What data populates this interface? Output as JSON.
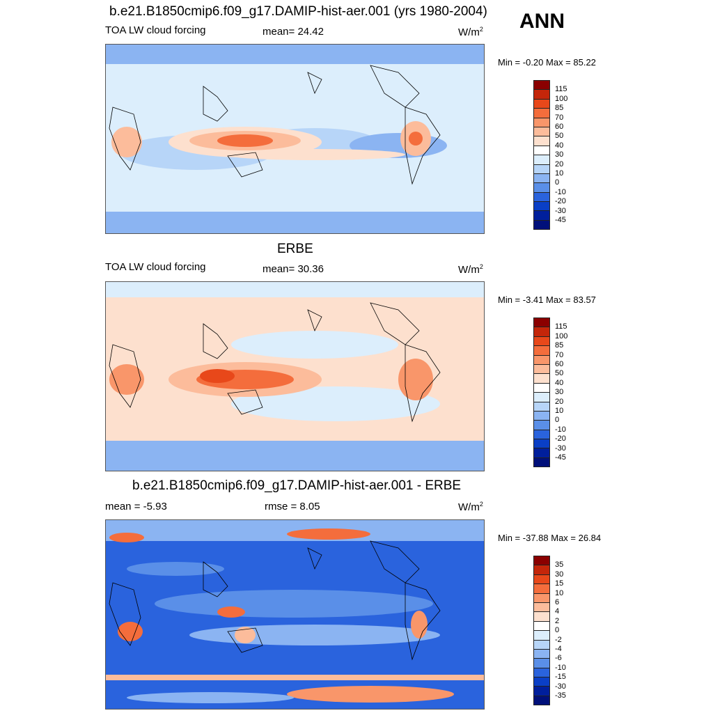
{
  "season": "ANN",
  "panels": [
    {
      "title": "b.e21.B1850cmip6.f09_g17.DAMIP-hist-aer.001 (yrs 1980-2004)",
      "left_label": "TOA LW cloud forcing",
      "center_label": "mean=  24.42",
      "units": "W/m",
      "units_sup": "2",
      "minmax": "Min =  -0.20 Max =  85.22",
      "colorbar_labels": [
        "115",
        "100",
        "85",
        "70",
        "60",
        "50",
        "40",
        "30",
        "20",
        "10",
        "0",
        "-10",
        "-20",
        "-30",
        "-45"
      ],
      "colorbar_colors": [
        "#8b0000",
        "#c4260a",
        "#e8481a",
        "#f46d3c",
        "#f9966a",
        "#fcbc9b",
        "#fde0ce",
        "#ffffff",
        "#dceefc",
        "#b7d5f8",
        "#8bb4f2",
        "#5a8fe8",
        "#2a63dd",
        "#0a3fc6",
        "#001f9c",
        "#00107a"
      ]
    },
    {
      "title": "ERBE",
      "left_label": "TOA LW cloud forcing",
      "center_label": "mean=  30.36",
      "units": "W/m",
      "units_sup": "2",
      "minmax": "Min =  -3.41 Max =  83.57",
      "colorbar_labels": [
        "115",
        "100",
        "85",
        "70",
        "60",
        "50",
        "40",
        "30",
        "20",
        "10",
        "0",
        "-10",
        "-20",
        "-30",
        "-45"
      ],
      "colorbar_colors": [
        "#8b0000",
        "#c4260a",
        "#e8481a",
        "#f46d3c",
        "#f9966a",
        "#fcbc9b",
        "#fde0ce",
        "#ffffff",
        "#dceefc",
        "#b7d5f8",
        "#8bb4f2",
        "#5a8fe8",
        "#2a63dd",
        "#0a3fc6",
        "#001f9c",
        "#00107a"
      ]
    },
    {
      "title": "b.e21.B1850cmip6.f09_g17.DAMIP-hist-aer.001 - ERBE",
      "left_label": "mean =  -5.93",
      "center_label": "rmse =   8.05",
      "units": "W/m",
      "units_sup": "2",
      "minmax": "Min = -37.88 Max =  26.84",
      "colorbar_labels": [
        "35",
        "30",
        "15",
        "10",
        "6",
        "4",
        "2",
        "0",
        "-2",
        "-4",
        "-6",
        "-10",
        "-15",
        "-30",
        "-35"
      ],
      "colorbar_colors": [
        "#8b0000",
        "#c4260a",
        "#e8481a",
        "#f46d3c",
        "#f9966a",
        "#fcbc9b",
        "#fde0ce",
        "#ffffff",
        "#dceefc",
        "#b7d5f8",
        "#8bb4f2",
        "#5a8fe8",
        "#2a63dd",
        "#0a3fc6",
        "#001f9c",
        "#00107a"
      ]
    }
  ]
}
